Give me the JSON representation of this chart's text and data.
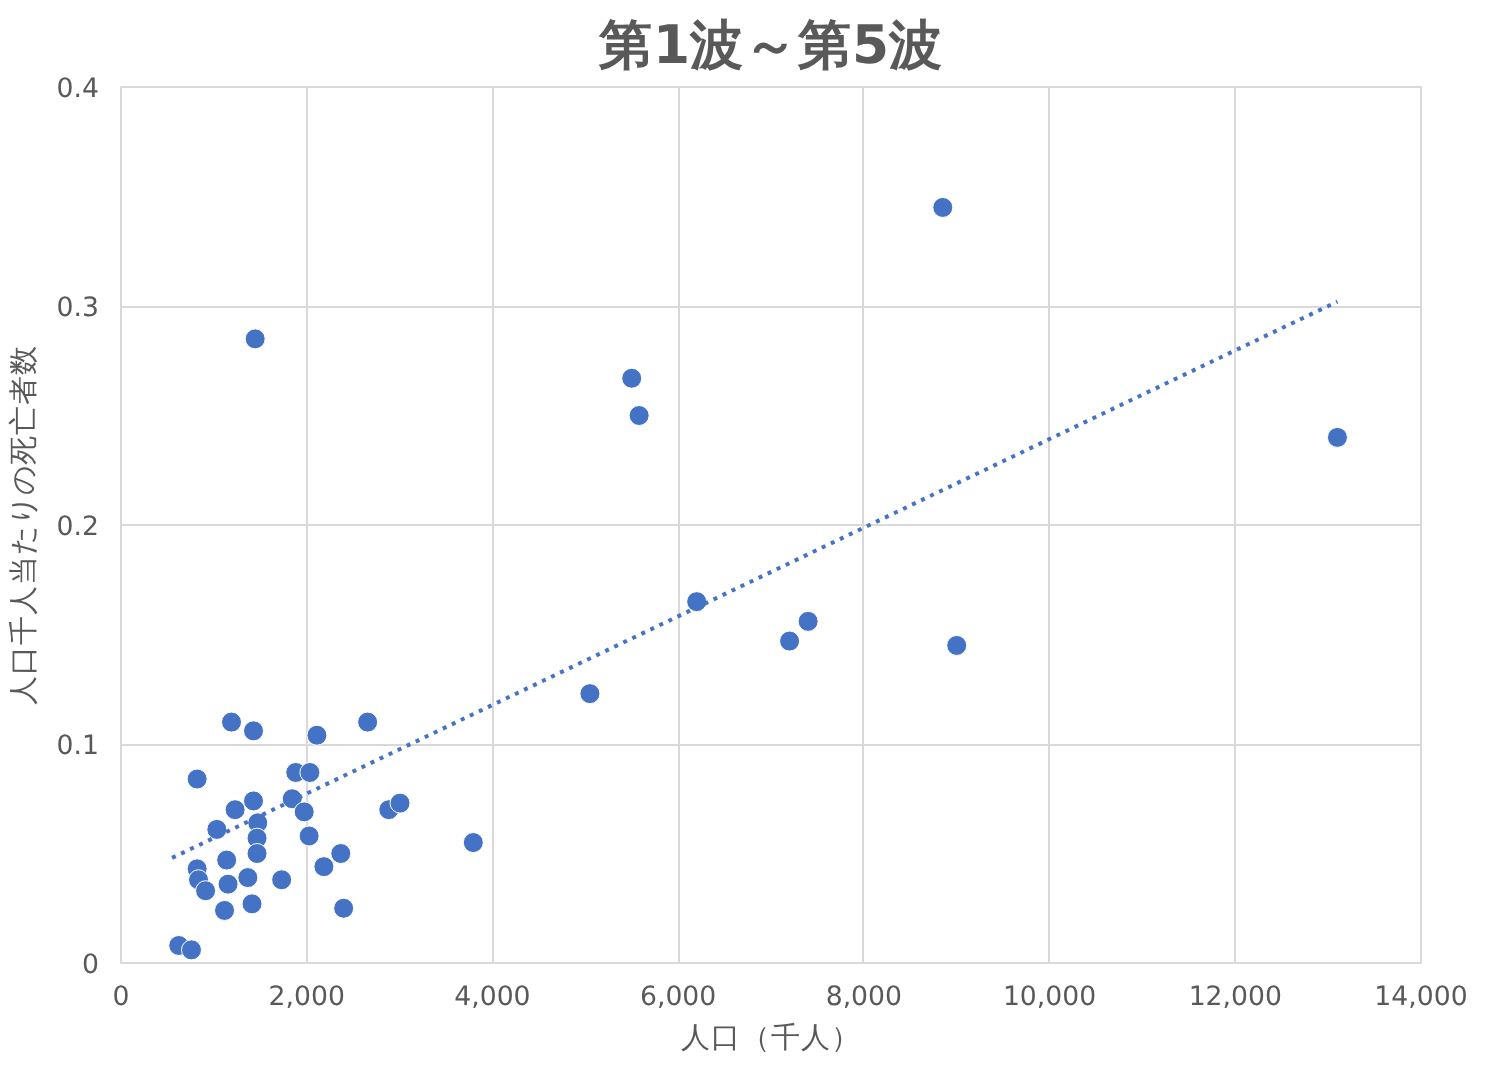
{
  "chart_data": {
    "type": "scatter",
    "title": "第1波～第5波",
    "xlabel": "人口（千人）",
    "ylabel": "人口千人当たりの死亡者数",
    "xlim": [
      0,
      14000
    ],
    "ylim": [
      0,
      0.4
    ],
    "xticks": [
      0,
      {
        "value": 2000,
        "label": "2,000"
      },
      {
        "value": 4000,
        "label": "4,000"
      },
      {
        "value": 6000,
        "label": "6,000"
      },
      {
        "value": 8000,
        "label": "8,000"
      },
      {
        "value": 10000,
        "label": "10,000"
      },
      {
        "value": 12000,
        "label": "12,000"
      },
      {
        "value": 14000,
        "label": "14,000"
      }
    ],
    "yticks": [
      0,
      0.1,
      0.2,
      0.3,
      0.4
    ],
    "grid": true,
    "series": [
      {
        "color": "#4472c4",
        "marker": "circle",
        "x": [
          1190,
          1427,
          2110,
          2656,
          820,
          1882,
          2034,
          1229,
          1427,
          1032,
          1473,
          1465,
          1465,
          1844,
          1973,
          2026,
          2884,
          3005,
          3794,
          2367,
          2185,
          2398,
          1730,
          1138,
          820,
          835,
          911,
          1153,
          1366,
          1115,
          1411,
          622,
          759,
          1445,
          5500,
          5580,
          8850,
          13100,
          5050,
          6200,
          7200,
          7400,
          9000
        ],
        "values": [
          0.11,
          0.106,
          0.104,
          0.11,
          0.084,
          0.087,
          0.087,
          0.07,
          0.074,
          0.061,
          0.064,
          0.057,
          0.05,
          0.075,
          0.069,
          0.058,
          0.07,
          0.073,
          0.055,
          0.05,
          0.044,
          0.025,
          0.038,
          0.047,
          0.043,
          0.038,
          0.033,
          0.036,
          0.039,
          0.024,
          0.027,
          0.008,
          0.006,
          0.285,
          0.267,
          0.25,
          0.345,
          0.24,
          0.123,
          0.165,
          0.147,
          0.156,
          0.145
        ]
      },
      {
        "color": "#4472c4",
        "type": "line",
        "marker": "none",
        "line_style": "dotted",
        "x": [
          550,
          13100
        ],
        "values": [
          0.048,
          0.302
        ]
      }
    ]
  }
}
